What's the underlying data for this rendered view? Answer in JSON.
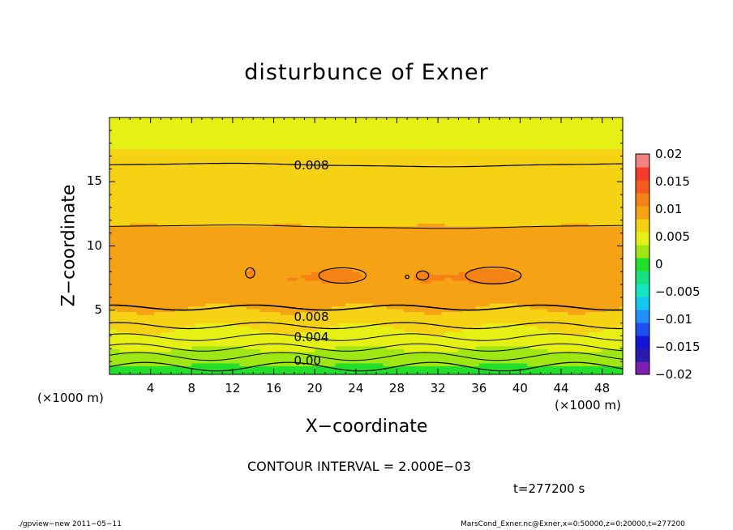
{
  "chart_data": {
    "type": "heatmap",
    "title": "disturbunce of Exner",
    "xlabel": "X−coordinate",
    "ylabel": "Z−coordinate",
    "x_unit": "(×1000 m)",
    "x_unit_bottom": "(×1000 m)",
    "xlim": [
      0,
      50
    ],
    "ylim": [
      0,
      20
    ],
    "x_ticks": [
      "4",
      "8",
      "12",
      "16",
      "20",
      "24",
      "28",
      "32",
      "36",
      "40",
      "44",
      "48"
    ],
    "y_ticks": [
      "5",
      "10",
      "15"
    ],
    "colorbar": {
      "levels": [
        -0.02,
        -0.0175,
        -0.015,
        -0.0125,
        -0.01,
        -0.0075,
        -0.005,
        -0.0025,
        0,
        0.0025,
        0.005,
        0.0075,
        0.01,
        0.0125,
        0.015,
        0.0175,
        0.02
      ],
      "colors": [
        "#7a1fb0",
        "#2a18b0",
        "#1414d8",
        "#1f4ef0",
        "#1e90ff",
        "#14c8f0",
        "#14e6c0",
        "#18e080",
        "#22e02a",
        "#9ee614",
        "#e6f014",
        "#f5d214",
        "#f5a214",
        "#f58214",
        "#f55a1e",
        "#f53c2a",
        "#f58282"
      ],
      "tick_labels": [
        "0.02",
        "0.015",
        "0.01",
        "0.005",
        "0",
        "−0.005",
        "−0.01",
        "−0.015",
        "−0.02"
      ]
    },
    "profile": {
      "z": [
        0,
        0.6,
        1.1,
        1.7,
        2.4,
        3.1,
        3.8,
        4.5,
        5.2,
        6.3,
        7.6,
        8.8,
        10.2,
        11.6,
        13.2,
        14.8,
        16.3,
        17.8,
        20
      ],
      "value": [
        0.0,
        0.0022,
        0.0035,
        0.0045,
        0.0057,
        0.0068,
        0.0078,
        0.0088,
        0.0102,
        0.0118,
        0.0121,
        0.0118,
        0.011,
        0.01,
        0.0092,
        0.0085,
        0.008,
        0.0074,
        0.0066
      ]
    },
    "contour_labels": [
      "0.008",
      "0.008",
      "0.004",
      "0.00"
    ],
    "contour_interval": "CONTOUR INTERVAL = 2.000E−03"
  },
  "footer": {
    "time": "t=277200 s",
    "program": "./gpview−new   2011−05−11",
    "source": "MarsCond_Exner.nc@Exner,x=0:50000,z=0:20000,t=277200"
  }
}
